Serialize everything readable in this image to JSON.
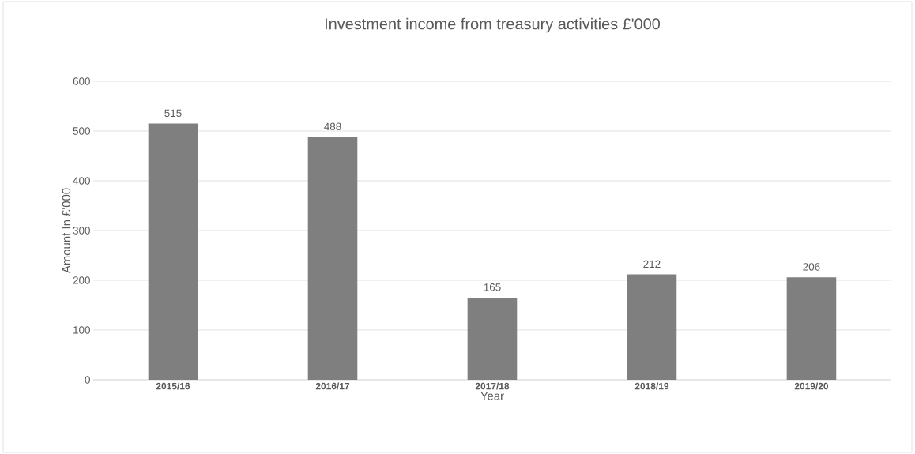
{
  "chart_data": {
    "type": "bar",
    "title": "Investment income from treasury activities £'000",
    "xlabel": "Year",
    "ylabel": "Amount In £'000",
    "categories": [
      "2015/16",
      "2016/17",
      "2017/18",
      "2018/19",
      "2019/20"
    ],
    "values": [
      515,
      488,
      165,
      212,
      206
    ],
    "color": "#7f7f7f",
    "ylim": [
      0,
      600
    ],
    "yticks": [
      0,
      100,
      200,
      300,
      400,
      500,
      600
    ],
    "grid": "y",
    "data_labels": true
  }
}
